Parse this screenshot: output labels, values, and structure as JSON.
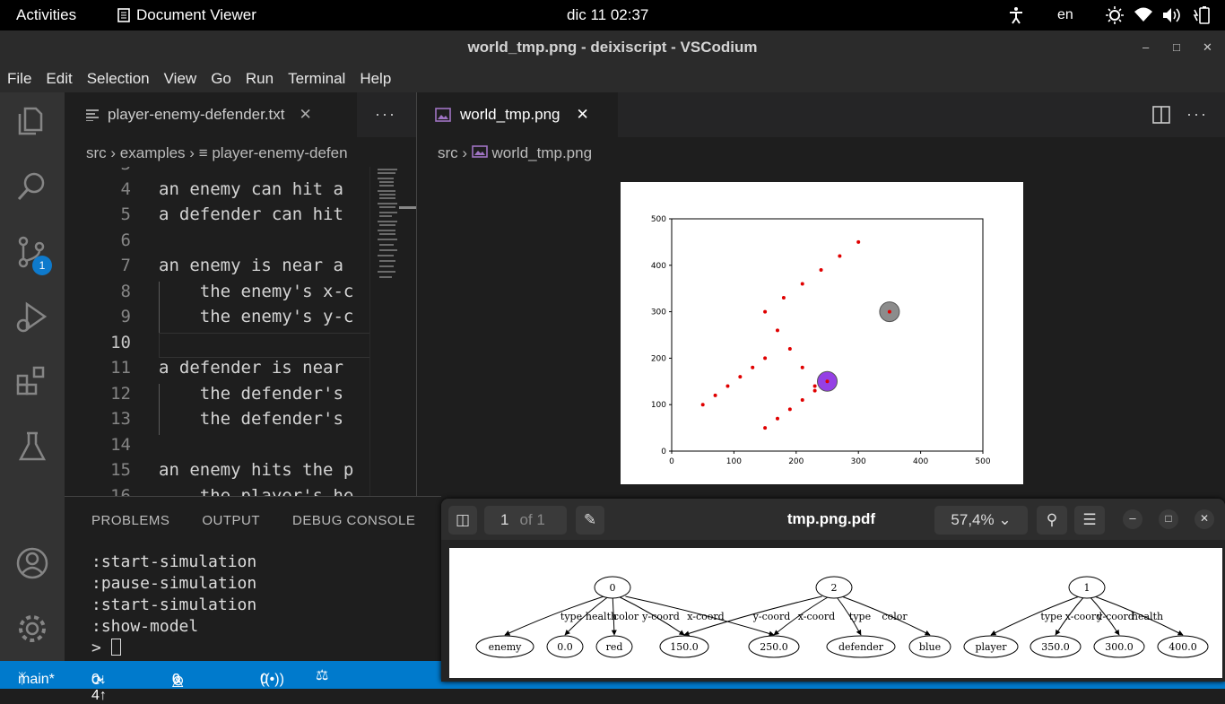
{
  "topbar": {
    "activities": "Activities",
    "app_name": "Document Viewer",
    "clock": "dic 11  02:37",
    "lang": "en"
  },
  "window": {
    "title": "world_tmp.png - deixiscript - VSCodium"
  },
  "menu": [
    "File",
    "Edit",
    "Selection",
    "View",
    "Go",
    "Run",
    "Terminal",
    "Help"
  ],
  "activity": {
    "scm_badge": "1"
  },
  "left_editor": {
    "tab_label": "player-enemy-defender.txt",
    "breadcrumb": [
      "src",
      "examples",
      "player-enemy-defen"
    ],
    "lines": [
      {
        "n": "4",
        "text": "an enemy can hit a"
      },
      {
        "n": "5",
        "text": "a defender can hit"
      },
      {
        "n": "6",
        "text": ""
      },
      {
        "n": "7",
        "text": "an enemy is near a"
      },
      {
        "n": "8",
        "text": "    the enemy's x-c"
      },
      {
        "n": "9",
        "text": "    the enemy's y-c"
      },
      {
        "n": "10",
        "text": ""
      },
      {
        "n": "11",
        "text": "a defender is near"
      },
      {
        "n": "12",
        "text": "    the defender's"
      },
      {
        "n": "13",
        "text": "    the defender's"
      },
      {
        "n": "14",
        "text": ""
      },
      {
        "n": "15",
        "text": "an enemy hits the p"
      },
      {
        "n": "16",
        "text": "    the player's he"
      }
    ]
  },
  "right_editor": {
    "tab_label": "world_tmp.png",
    "breadcrumb": [
      "src",
      "world_tmp.png"
    ]
  },
  "chart_data": {
    "type": "scatter",
    "xlim": [
      0,
      500
    ],
    "ylim": [
      0,
      500
    ],
    "xticks": [
      "0",
      "100",
      "200",
      "300",
      "400",
      "500"
    ],
    "yticks": [
      "0",
      "100",
      "200",
      "300",
      "400",
      "500"
    ],
    "points": [
      [
        50,
        100
      ],
      [
        70,
        120
      ],
      [
        90,
        140
      ],
      [
        110,
        160
      ],
      [
        130,
        180
      ],
      [
        150,
        200
      ],
      [
        170,
        260
      ],
      [
        190,
        220
      ],
      [
        210,
        180
      ],
      [
        230,
        140
      ],
      [
        150,
        300
      ],
      [
        180,
        330
      ],
      [
        210,
        360
      ],
      [
        240,
        390
      ],
      [
        270,
        420
      ],
      [
        300,
        450
      ],
      [
        150,
        50
      ],
      [
        170,
        70
      ],
      [
        190,
        90
      ],
      [
        210,
        110
      ],
      [
        230,
        130
      ],
      [
        250,
        150
      ],
      [
        350,
        300
      ]
    ],
    "point_color": "#e00000",
    "circles": [
      {
        "x": 350,
        "y": 300,
        "color": "#808080"
      },
      {
        "x": 250,
        "y": 150,
        "color": "#8a2be2"
      }
    ]
  },
  "panel": {
    "tabs": [
      "PROBLEMS",
      "OUTPUT",
      "DEBUG CONSOLE"
    ],
    "terminal": [
      ":start-simulation",
      ":pause-simulation",
      ":start-simulation",
      ":show-model",
      "> "
    ]
  },
  "statusbar": {
    "branch": "main*",
    "sync": "0↓ 4↑",
    "errors": "0",
    "warnings": "0",
    "ports": "0"
  },
  "pdf": {
    "page": "1",
    "of": "of 1",
    "title": "tmp.png.pdf",
    "zoom": "57,4%",
    "graph": {
      "parents": [
        "0",
        "2",
        "1"
      ],
      "leaves": [
        "enemy",
        "0.0",
        "red",
        "150.0",
        "250.0",
        "defender",
        "blue",
        "player",
        "350.0",
        "300.0",
        "400.0"
      ],
      "edge_labels": [
        "type",
        "health",
        "color",
        "y-coord",
        "x-coord",
        "y-coord",
        "x-coord",
        "type",
        "color",
        "type",
        "x-coord",
        "y-coord",
        "health"
      ]
    }
  }
}
